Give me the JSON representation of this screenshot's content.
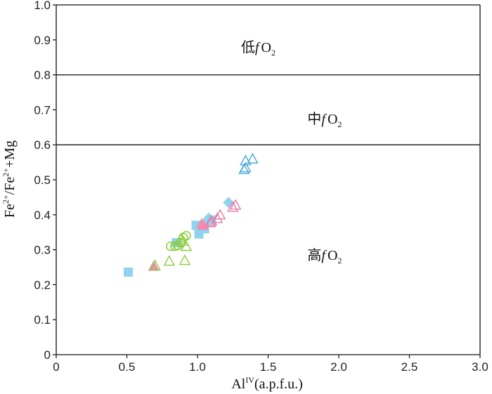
{
  "chart_data": {
    "type": "scatter",
    "title": "",
    "xlabel": {
      "main": "Al",
      "sup": "IV",
      "rest": "(a.p.f.u.)"
    },
    "ylabel": {
      "parts": [
        "Fe",
        "2+",
        "/Fe",
        "2+",
        "+Mg"
      ]
    },
    "xlim": [
      0,
      3.0
    ],
    "ylim": [
      0,
      1.0
    ],
    "xticks": [
      "0",
      "0.5",
      "1.0",
      "1.5",
      "2.0",
      "2.5",
      "3.0"
    ],
    "yticks": [
      "0",
      "0.1",
      "0.2",
      "0.3",
      "0.4",
      "0.5",
      "0.6",
      "0.7",
      "0.8",
      "0.9",
      "1.0"
    ],
    "xtick_values": [
      0,
      0.5,
      1.0,
      1.5,
      2.0,
      2.5,
      3.0
    ],
    "ytick_values": [
      0,
      0.1,
      0.2,
      0.3,
      0.4,
      0.5,
      0.6,
      0.7,
      0.8,
      0.9,
      1.0
    ],
    "hlines": [
      0.8,
      0.6
    ],
    "regions": [
      {
        "prefix": "低",
        "f": "f",
        "ox": "O",
        "sub": "2",
        "x": 1.43,
        "y": 0.88
      },
      {
        "prefix": "中",
        "f": "f",
        "ox": "O",
        "sub": "2",
        "x": 1.9,
        "y": 0.675
      },
      {
        "prefix": "高",
        "f": "f",
        "ox": "O",
        "sub": "2",
        "x": 1.9,
        "y": 0.285
      }
    ],
    "series": [
      {
        "name": "cyan-square",
        "marker": "square",
        "color": "#8fd3ee",
        "points": [
          [
            0.51,
            0.236
          ],
          [
            0.85,
            0.32
          ],
          [
            0.99,
            0.37
          ],
          [
            1.01,
            0.345
          ],
          [
            1.02,
            0.36
          ],
          [
            1.05,
            0.36
          ],
          [
            1.1,
            0.385
          ]
        ]
      },
      {
        "name": "cyan-diamond",
        "marker": "diamond",
        "color": "#8fd3ee",
        "points": [
          [
            1.05,
            0.375
          ],
          [
            1.08,
            0.39
          ],
          [
            1.22,
            0.435
          ]
        ]
      },
      {
        "name": "pink-filled-triangle",
        "marker": "triangle-filled",
        "color": "#f08cb0",
        "points": [
          [
            0.69,
            0.253
          ],
          [
            1.03,
            0.375
          ],
          [
            1.04,
            0.37
          ]
        ]
      },
      {
        "name": "pink-open-triangle",
        "marker": "triangle-open",
        "color": "#e87aa6",
        "points": [
          [
            1.09,
            0.378
          ],
          [
            1.1,
            0.382
          ],
          [
            1.14,
            0.39
          ],
          [
            1.16,
            0.4
          ],
          [
            1.25,
            0.422
          ],
          [
            1.27,
            0.428
          ]
        ]
      },
      {
        "name": "green-open-triangle",
        "marker": "triangle-open",
        "color": "#8ccc3c",
        "points": [
          [
            0.7,
            0.255
          ],
          [
            0.8,
            0.268
          ],
          [
            0.91,
            0.27
          ],
          [
            0.9,
            0.325
          ],
          [
            0.92,
            0.31
          ],
          [
            0.88,
            0.33
          ]
        ]
      },
      {
        "name": "green-open-circle",
        "marker": "circle-open",
        "color": "#8ccc3c",
        "points": [
          [
            0.81,
            0.31
          ],
          [
            0.84,
            0.31
          ],
          [
            0.86,
            0.312
          ],
          [
            0.88,
            0.32
          ],
          [
            0.9,
            0.335
          ],
          [
            0.92,
            0.34
          ]
        ]
      },
      {
        "name": "blue-open-triangle",
        "marker": "triangle-open",
        "color": "#4aa8d8",
        "points": [
          [
            1.33,
            0.53
          ],
          [
            1.34,
            0.535
          ],
          [
            1.34,
            0.555
          ],
          [
            1.39,
            0.56
          ]
        ]
      }
    ]
  }
}
